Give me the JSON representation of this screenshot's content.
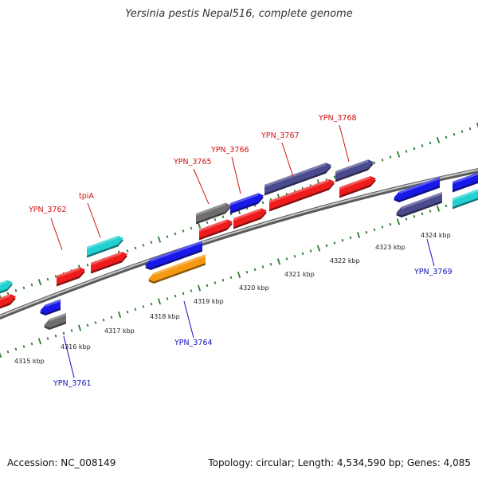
{
  "title": "Yersinia pestis Nepal516, complete genome",
  "footer": {
    "accession": "Accession: NC_008149",
    "stats": "Topology: circular; Length: 4,534,590 bp; Genes: 4,085"
  },
  "colors": {
    "backbone": "#8a8a8a",
    "tick": "#2e7d2e",
    "label_forward": "#d01010",
    "label_reverse": "#1010c0",
    "red": "#ee1c1c",
    "cyan": "#22d0d0",
    "gray": "#6e6e6e",
    "blue": "#1818e8",
    "navy": "#4a4a8e",
    "orange": "#f59a10"
  },
  "scale_labels": [
    "4315 kbp",
    "4316 kbp",
    "4317 kbp",
    "4318 kbp",
    "4319 kbp",
    "4320 kbp",
    "4321 kbp",
    "4322 kbp",
    "4323 kbp",
    "4324 kbp"
  ],
  "gene_labels": [
    {
      "text": "YPN_3762",
      "strand": "forward"
    },
    {
      "text": "tpiA",
      "strand": "forward"
    },
    {
      "text": "YPN_3765",
      "strand": "forward"
    },
    {
      "text": "YPN_3766",
      "strand": "forward"
    },
    {
      "text": "YPN_3767",
      "strand": "forward"
    },
    {
      "text": "YPN_3768",
      "strand": "forward"
    },
    {
      "text": "YPN_3761",
      "strand": "reverse"
    },
    {
      "text": "YPN_3764",
      "strand": "reverse"
    },
    {
      "text": "YPN_3769",
      "strand": "reverse"
    }
  ],
  "features": [
    {
      "color": "cyan",
      "strand": "forward"
    },
    {
      "color": "red",
      "strand": "forward"
    },
    {
      "color": "red",
      "strand": "forward"
    },
    {
      "color": "cyan",
      "strand": "forward"
    },
    {
      "color": "red",
      "strand": "forward"
    },
    {
      "color": "gray",
      "strand": "forward"
    },
    {
      "color": "blue",
      "strand": "forward"
    },
    {
      "color": "red",
      "strand": "forward"
    },
    {
      "color": "red",
      "strand": "forward"
    },
    {
      "color": "navy",
      "strand": "forward"
    },
    {
      "color": "red",
      "strand": "forward"
    },
    {
      "color": "navy",
      "strand": "forward"
    },
    {
      "color": "red",
      "strand": "forward"
    },
    {
      "color": "blue",
      "strand": "forward"
    },
    {
      "color": "cyan",
      "strand": "forward"
    },
    {
      "color": "blue",
      "strand": "reverse"
    },
    {
      "color": "gray",
      "strand": "reverse"
    },
    {
      "color": "blue",
      "strand": "reverse"
    },
    {
      "color": "orange",
      "strand": "reverse"
    },
    {
      "color": "blue",
      "strand": "reverse"
    },
    {
      "color": "navy",
      "strand": "reverse"
    }
  ]
}
